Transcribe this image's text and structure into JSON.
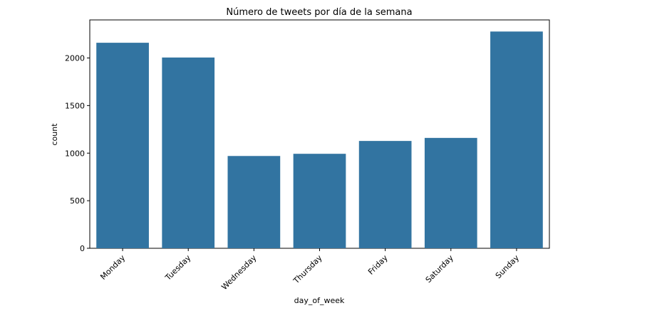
{
  "chart_data": {
    "type": "bar",
    "title": "Número de tweets por día de la semana",
    "xlabel": "day_of_week",
    "ylabel": "count",
    "categories": [
      "Monday",
      "Tuesday",
      "Wednesday",
      "Thursday",
      "Friday",
      "Saturday",
      "Sunday"
    ],
    "values": [
      2160,
      2005,
      970,
      993,
      1128,
      1160,
      2278
    ],
    "ylim": [
      0,
      2400
    ],
    "yticks": [
      0,
      500,
      1000,
      1500,
      2000
    ],
    "bar_color": "#3274a1",
    "grid": false,
    "x_tick_rotation": "45deg"
  }
}
